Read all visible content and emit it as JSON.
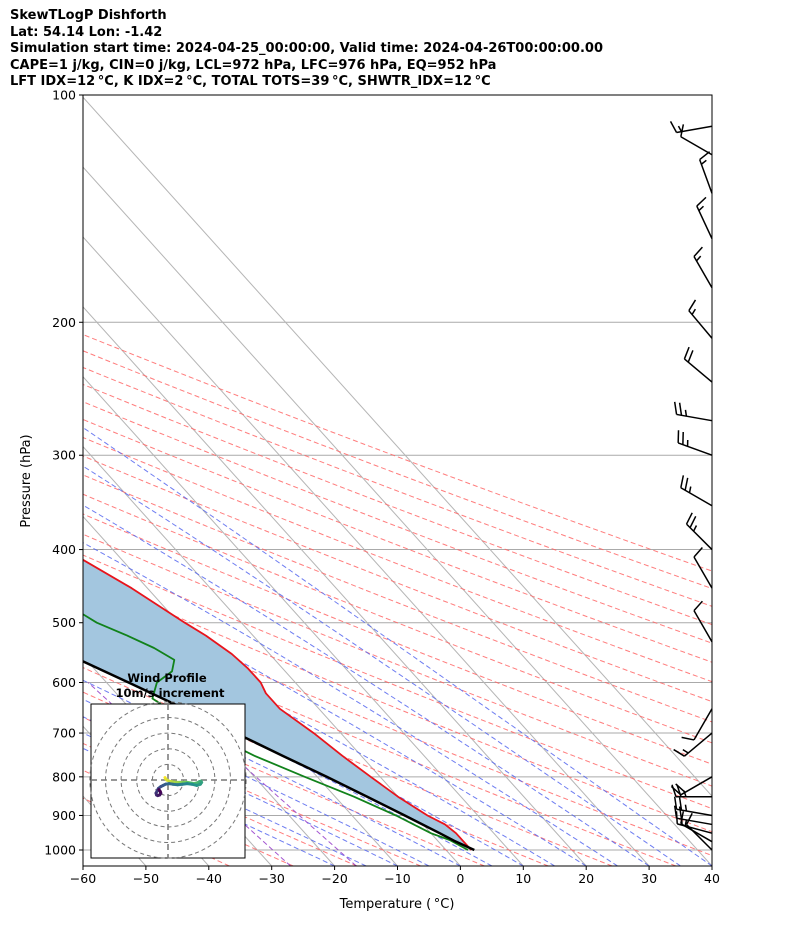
{
  "header": {
    "line1": "SkewTLogP Dishforth",
    "line2": "Lat: 54.14   Lon: -1.42",
    "line3": "Simulation start time: 2024-04-25_00:00:00, Valid time: 2024-04-26T00:00:00.00",
    "line4": "CAPE=1 j/kg, CIN=0 j/kg, LCL=972 hPa, LFC=976 hPa, EQ=952 hPa",
    "line5": "LFT IDX=12 °C, K IDX=2 °C, TOTAL TOTS=39 °C, SHWTR_IDX=12 °C"
  },
  "inset": {
    "title_line1": "Wind Profile",
    "title_line2": "10m/s increment"
  },
  "colors": {
    "temperature": "#e8141c",
    "dewpoint": "#11821b",
    "parcel": "#000000",
    "cape_fill": "#a3c6df",
    "dry_adiabat": "#ff6666",
    "moist_adiabat": "#5566ee",
    "mixing_ratio": "#9944cc",
    "isotherm": "#b5b5b5",
    "grid": "#aaaaaa"
  },
  "chart_data": {
    "type": "line",
    "subtype": "skew-T log-P",
    "xlabel": "Temperature ( °C)",
    "ylabel": "Pressure (hPa)",
    "xlim": [
      -60,
      40
    ],
    "ylim": [
      1050,
      100
    ],
    "xticks": [
      "−60",
      "−50",
      "−40",
      "−30",
      "−20",
      "−10",
      "0",
      "10",
      "20",
      "30",
      "40"
    ],
    "yticks": [
      "100",
      "200",
      "300",
      "400",
      "500",
      "600",
      "700",
      "800",
      "900",
      "1000"
    ],
    "series": [
      {
        "name": "Temperature",
        "pressure": [
          1000,
          950,
          925,
          900,
          850,
          800,
          750,
          700,
          650,
          620,
          600,
          575,
          550,
          520,
          500,
          450,
          400,
          350,
          320,
          300,
          280,
          265,
          250,
          235,
          200,
          170,
          150,
          130,
          115,
          100
        ],
        "temp": [
          4,
          4,
          3.5,
          2,
          0,
          -1.5,
          -3,
          -4.3,
          -6.2,
          -6.2,
          -5.5,
          -5.5,
          -6,
          -7.5,
          -9,
          -12.5,
          -17.5,
          -23,
          -26.5,
          -28.5,
          -32,
          -36,
          -38.5,
          -42,
          -46,
          -48,
          -49,
          -51,
          -51.5,
          -52
        ]
      },
      {
        "name": "Dewpoint",
        "pressure": [
          1000,
          970,
          950,
          900,
          850,
          800,
          750,
          700,
          650,
          630,
          600,
          580,
          560,
          540,
          520,
          500,
          450,
          400,
          350,
          300,
          250,
          220,
          200,
          180,
          150,
          130,
          100
        ],
        "temp": [
          3.5,
          2,
          0,
          -3,
          -7,
          -12,
          -17,
          -21,
          -24,
          -25,
          -22,
          -18,
          -16,
          -17.5,
          -20,
          -23,
          -27,
          -30,
          -33.5,
          -38,
          -42,
          -47,
          -53,
          -58,
          -62,
          -63,
          -65
        ]
      },
      {
        "name": "Parcel",
        "pressure": [
          1000,
          972,
          950,
          900,
          850,
          800,
          750,
          700,
          650,
          600,
          550,
          500,
          450,
          400,
          350,
          300,
          250,
          200,
          150,
          125,
          100
        ],
        "temp": [
          4.5,
          2.6,
          1.4,
          -1.6,
          -4.9,
          -8.5,
          -12.5,
          -16.7,
          -21.4,
          -26.5,
          -32.2,
          -38.6,
          -45.5,
          -53.2,
          -61.6,
          -71,
          -81.7,
          -94.5,
          -110,
          -118.5,
          -128
        ]
      }
    ],
    "filled_region": {
      "name": "CAPE area",
      "between": [
        "Temperature",
        "Parcel"
      ]
    },
    "wind_barbs": [
      {
        "p": 1000,
        "dir": 315,
        "spd": 10
      },
      {
        "p": 975,
        "dir": 300,
        "spd": 15
      },
      {
        "p": 950,
        "dir": 285,
        "spd": 15
      },
      {
        "p": 925,
        "dir": 280,
        "spd": 20
      },
      {
        "p": 900,
        "dir": 280,
        "spd": 25
      },
      {
        "p": 850,
        "dir": 270,
        "spd": 25
      },
      {
        "p": 800,
        "dir": 240,
        "spd": 20
      },
      {
        "p": 700,
        "dir": 230,
        "spd": 15
      },
      {
        "p": 650,
        "dir": 210,
        "spd": 10
      },
      {
        "p": 530,
        "dir": 330,
        "spd": 10
      },
      {
        "p": 450,
        "dir": 330,
        "spd": 10
      },
      {
        "p": 400,
        "dir": 315,
        "spd": 25
      },
      {
        "p": 350,
        "dir": 300,
        "spd": 25
      },
      {
        "p": 300,
        "dir": 290,
        "spd": 25
      },
      {
        "p": 270,
        "dir": 280,
        "spd": 25
      },
      {
        "p": 240,
        "dir": 310,
        "spd": 20
      },
      {
        "p": 210,
        "dir": 320,
        "spd": 15
      },
      {
        "p": 180,
        "dir": 330,
        "spd": 15
      },
      {
        "p": 155,
        "dir": 335,
        "spd": 15
      },
      {
        "p": 135,
        "dir": 340,
        "spd": 15
      },
      {
        "p": 120,
        "dir": 300,
        "spd": 10
      },
      {
        "p": 110,
        "dir": 260,
        "spd": 15
      }
    ],
    "hodograph": {
      "ring_spacing": 10,
      "u": [
        -1.5,
        -1.2,
        -0.6,
        0.6,
        2.4,
        4.2,
        6,
        7.8,
        9.6,
        11.4,
        12.9,
        14.4,
        15.6,
        16.5,
        16.8,
        16.2,
        14.4,
        12,
        9.6,
        7.2,
        4.8,
        2.4,
        0.6,
        -1.2,
        -2.4,
        -3.6,
        -4.8,
        -5.4,
        -6,
        -5.7,
        -5.1,
        -4.2,
        -3.6,
        -3.9,
        -4.5
      ],
      "v": [
        1.2,
        0.6,
        0,
        -0.6,
        -0.9,
        -1.2,
        -1.2,
        -1.2,
        -1.2,
        -1.5,
        -1.8,
        -1.5,
        -0.9,
        -0.6,
        -1.2,
        -2.1,
        -2.7,
        -2.1,
        -1.8,
        -2.1,
        -2.4,
        -2.1,
        -1.8,
        -2.1,
        -2.7,
        -3.3,
        -4.2,
        -5.4,
        -6.6,
        -7.5,
        -7.8,
        -7.5,
        -6.6,
        -5.7,
        -4.8
      ]
    }
  }
}
